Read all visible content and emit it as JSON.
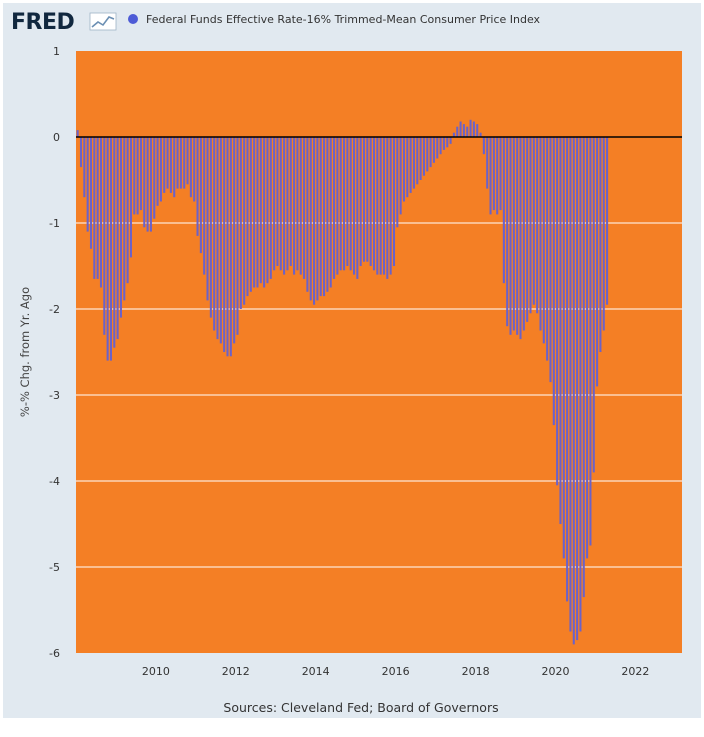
{
  "header": {
    "logo_text": "FRED",
    "legend_label": "Federal Funds Effective Rate-16% Trimmed-Mean Consumer Price Index"
  },
  "footer": {
    "sources": "Sources: Cleveland Fed; Board of Governors"
  },
  "colors": {
    "plot_bg": "#f47f25",
    "bar": "#6b62c9",
    "legend_marker": "#4d5bd6",
    "frame_bg": "#e1e9f0",
    "zero_line": "#000000",
    "grid": "#ffffff"
  },
  "chart_data": {
    "type": "bar",
    "title": "",
    "xlabel": "",
    "ylabel": "%-% Chg. from Yr. Ago",
    "ylim": [
      -6,
      1
    ],
    "yticks": [
      1,
      0,
      -1,
      -2,
      -3,
      -4,
      -5,
      -6
    ],
    "xticks": [
      "2010",
      "2012",
      "2014",
      "2016",
      "2018",
      "2020",
      "2022"
    ],
    "grid": true,
    "legend": "top-left",
    "x_start": "2008-01",
    "x_end": "2023-03",
    "series": [
      {
        "name": "Federal Funds Effective Rate-16% Trimmed-Mean Consumer Price Index",
        "frequency": "monthly",
        "start": "2008-01",
        "values": [
          0.08,
          -0.35,
          -0.7,
          -1.1,
          -1.3,
          -1.65,
          -1.65,
          -1.75,
          -2.3,
          -2.6,
          -2.6,
          -2.45,
          -2.35,
          -2.1,
          -1.9,
          -1.7,
          -1.4,
          -0.9,
          -0.9,
          -0.85,
          -1.05,
          -1.1,
          -1.1,
          -0.95,
          -0.8,
          -0.75,
          -0.65,
          -0.6,
          -0.65,
          -0.7,
          -0.6,
          -0.6,
          -0.6,
          -0.55,
          -0.7,
          -0.75,
          -1.15,
          -1.35,
          -1.6,
          -1.9,
          -2.1,
          -2.25,
          -2.35,
          -2.4,
          -2.5,
          -2.55,
          -2.55,
          -2.4,
          -2.3,
          -2.0,
          -1.95,
          -1.85,
          -1.8,
          -1.75,
          -1.75,
          -1.7,
          -1.75,
          -1.7,
          -1.65,
          -1.55,
          -1.5,
          -1.55,
          -1.6,
          -1.55,
          -1.5,
          -1.6,
          -1.55,
          -1.6,
          -1.65,
          -1.8,
          -1.9,
          -1.95,
          -1.9,
          -1.85,
          -1.85,
          -1.8,
          -1.75,
          -1.65,
          -1.6,
          -1.55,
          -1.55,
          -1.5,
          -1.55,
          -1.6,
          -1.65,
          -1.5,
          -1.45,
          -1.45,
          -1.5,
          -1.55,
          -1.6,
          -1.6,
          -1.6,
          -1.65,
          -1.6,
          -1.5,
          -1.05,
          -0.9,
          -0.75,
          -0.7,
          -0.65,
          -0.6,
          -0.55,
          -0.5,
          -0.45,
          -0.4,
          -0.35,
          -0.3,
          -0.25,
          -0.2,
          -0.15,
          -0.12,
          -0.08,
          0.05,
          0.12,
          0.18,
          0.15,
          0.12,
          0.2,
          0.18,
          0.15,
          0.05,
          -0.2,
          -0.6,
          -0.9,
          -0.85,
          -0.9,
          -0.85,
          -1.7,
          -2.2,
          -2.3,
          -2.25,
          -2.3,
          -2.35,
          -2.25,
          -2.15,
          -2.05,
          -1.95,
          -2.05,
          -2.25,
          -2.4,
          -2.6,
          -2.85,
          -3.35,
          -4.05,
          -4.5,
          -4.9,
          -5.4,
          -5.75,
          -5.9,
          -5.85,
          -5.75,
          -5.35,
          -4.9,
          -4.75,
          -3.9,
          -2.9,
          -2.5,
          -2.25,
          -1.95
        ]
      }
    ]
  }
}
